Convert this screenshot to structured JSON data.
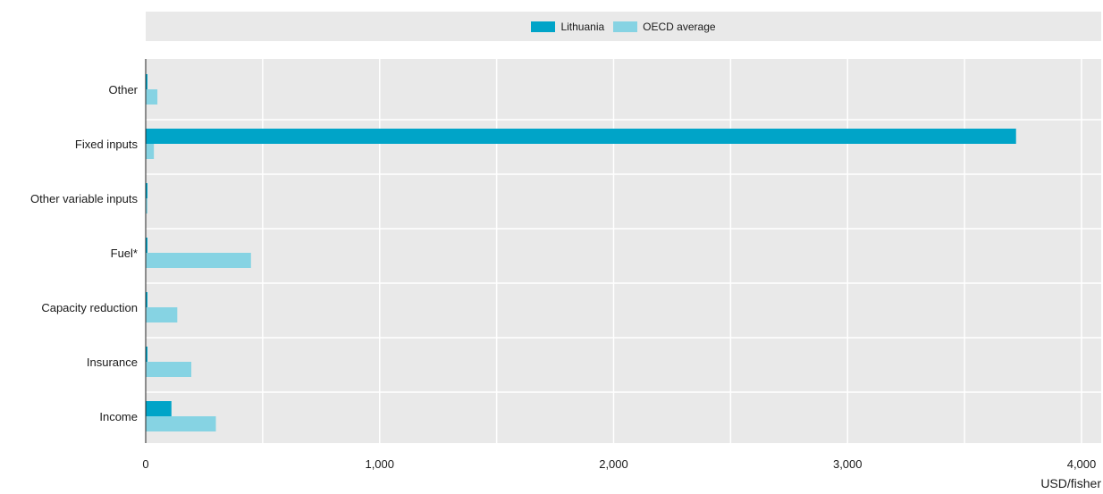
{
  "colors": {
    "lithuania": "#00a4c8",
    "oecd": "#86d3e3",
    "plot_bg": "#e9e9e9",
    "grid": "#ffffff"
  },
  "chart_data": {
    "type": "bar",
    "orientation": "horizontal",
    "categories": [
      "Other",
      "Fixed inputs",
      "Other variable inputs",
      "Fuel*",
      "Capacity reduction",
      "Insurance",
      "Income"
    ],
    "series": [
      {
        "name": "Lithuania",
        "values": [
          0,
          3720,
          0,
          0,
          0,
          0,
          110
        ]
      },
      {
        "name": "OECD average",
        "values": [
          50,
          35,
          0,
          450,
          135,
          195,
          300
        ]
      }
    ],
    "xlabel": "USD/fisher",
    "xlim": [
      0,
      4000
    ],
    "xticks": [
      "0",
      "1,000",
      "2,000",
      "3,000",
      "4,000"
    ],
    "grid": true,
    "legend_position": "top"
  }
}
